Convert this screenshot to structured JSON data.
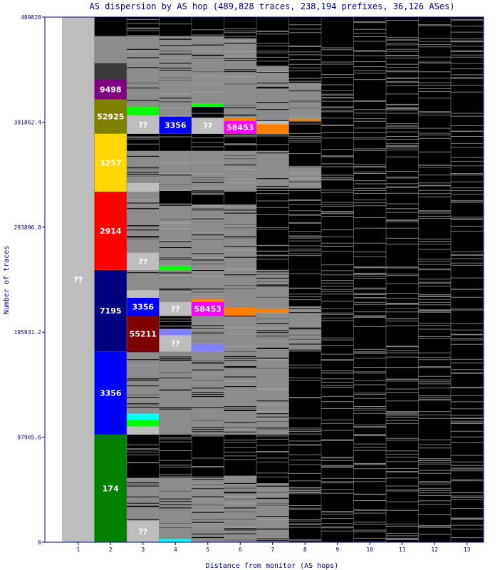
{
  "chart_data": {
    "type": "bar",
    "title": "AS dispersion by AS hop (489,828 traces, 238,194 prefixes, 36,126 ASes)",
    "xlabel": "Distance from monitor (AS hops)",
    "ylabel": "Number of traces",
    "categories": [
      "1",
      "2",
      "3",
      "4",
      "5",
      "6",
      "7",
      "8",
      "9",
      "10",
      "11",
      "12",
      "13"
    ],
    "ylim": [
      0,
      489828
    ],
    "yticks": [
      "0",
      "97965.6",
      "195931.2",
      "293896.8",
      "391862.4",
      "489828"
    ],
    "colors": {
      "frame": "#00007f",
      "unknown": "#bdbdbd",
      "other": "#8c8c8c",
      "none": "#000000"
    },
    "columns": [
      {
        "hop": "1",
        "segments": [
          {
            "label": "??",
            "y0": 0,
            "y1": 489828,
            "color": "#bdbdbd"
          }
        ]
      },
      {
        "hop": "2",
        "segments": [
          {
            "label": "174",
            "y0": 0,
            "y1": 100400,
            "color": "#008000"
          },
          {
            "label": "3356",
            "y0": 100400,
            "y1": 178000,
            "color": "#0000ff"
          },
          {
            "label": "7195",
            "y0": 178000,
            "y1": 254000,
            "color": "#000080"
          },
          {
            "label": "2914",
            "y0": 254000,
            "y1": 327000,
            "color": "#ff0000"
          },
          {
            "label": "3257",
            "y0": 327000,
            "y1": 381000,
            "color": "#ffd700"
          },
          {
            "label": "52925",
            "y0": 381000,
            "y1": 413000,
            "color": "#808000"
          },
          {
            "label": "9498",
            "y0": 413000,
            "y1": 432000,
            "color": "#800080"
          },
          {
            "label": "",
            "y0": 432000,
            "y1": 447000,
            "color": "#3a3a3a"
          },
          {
            "label": "",
            "y0": 447000,
            "y1": 472000,
            "color": "#8c8c8c"
          },
          {
            "label": "",
            "y0": 472000,
            "y1": 489828,
            "color": "#000000"
          }
        ]
      },
      {
        "hop": "3",
        "segments": [
          {
            "label": "??",
            "y0": 0,
            "y1": 20000,
            "color": "#bdbdbd"
          },
          {
            "label": "",
            "y0": 20000,
            "y1": 60000,
            "color": "#8c8c8c"
          },
          {
            "label": "",
            "y0": 60000,
            "y1": 100400,
            "color": "#000000"
          },
          {
            "label": "",
            "y0": 100400,
            "y1": 108000,
            "color": "#bdbdbd"
          },
          {
            "label": "",
            "y0": 108000,
            "y1": 114000,
            "color": "#00ff00"
          },
          {
            "label": "",
            "y0": 114000,
            "y1": 120000,
            "color": "#00ffff"
          },
          {
            "label": "",
            "y0": 120000,
            "y1": 178000,
            "color": "#8c8c8c"
          },
          {
            "label": "55211",
            "y0": 178000,
            "y1": 211000,
            "color": "#800000"
          },
          {
            "label": "3356",
            "y0": 211000,
            "y1": 228000,
            "color": "#0000ff"
          },
          {
            "label": "",
            "y0": 228000,
            "y1": 235000,
            "color": "#bdbdbd"
          },
          {
            "label": "",
            "y0": 235000,
            "y1": 254000,
            "color": "#8c8c8c"
          },
          {
            "label": "??",
            "y0": 254000,
            "y1": 270000,
            "color": "#bdbdbd"
          },
          {
            "label": "",
            "y0": 270000,
            "y1": 315000,
            "color": "#8c8c8c"
          },
          {
            "label": "",
            "y0": 315000,
            "y1": 327000,
            "color": "#8c8c8c"
          },
          {
            "label": "",
            "y0": 327000,
            "y1": 335000,
            "color": "#bdbdbd"
          },
          {
            "label": "",
            "y0": 335000,
            "y1": 365000,
            "color": "#8c8c8c"
          },
          {
            "label": "",
            "y0": 365000,
            "y1": 381000,
            "color": "#000000"
          },
          {
            "label": "??",
            "y0": 381000,
            "y1": 398000,
            "color": "#bdbdbd"
          },
          {
            "label": "",
            "y0": 398000,
            "y1": 406000,
            "color": "#00ff00"
          },
          {
            "label": "",
            "y0": 406000,
            "y1": 447000,
            "color": "#8c8c8c"
          },
          {
            "label": "",
            "y0": 447000,
            "y1": 472000,
            "color": "#8c8c8c"
          },
          {
            "label": "",
            "y0": 472000,
            "y1": 489828,
            "color": "#000000"
          }
        ]
      },
      {
        "hop": "4",
        "segments": [
          {
            "label": "",
            "y0": 0,
            "y1": 3000,
            "color": "#00ffff"
          },
          {
            "label": "",
            "y0": 3000,
            "y1": 60000,
            "color": "#8c8c8c"
          },
          {
            "label": "",
            "y0": 60000,
            "y1": 100400,
            "color": "#000000"
          },
          {
            "label": "",
            "y0": 100400,
            "y1": 178000,
            "color": "#8c8c8c"
          },
          {
            "label": "??",
            "y0": 178000,
            "y1": 193000,
            "color": "#bdbdbd"
          },
          {
            "label": "",
            "y0": 193000,
            "y1": 199000,
            "color": "#8080ff"
          },
          {
            "label": "",
            "y0": 199000,
            "y1": 211000,
            "color": "#000000"
          },
          {
            "label": "??",
            "y0": 211000,
            "y1": 224000,
            "color": "#bdbdbd"
          },
          {
            "label": "",
            "y0": 224000,
            "y1": 254000,
            "color": "#8c8c8c"
          },
          {
            "label": "",
            "y0": 254000,
            "y1": 258000,
            "color": "#00ff00"
          },
          {
            "label": "",
            "y0": 258000,
            "y1": 315000,
            "color": "#8c8c8c"
          },
          {
            "label": "",
            "y0": 315000,
            "y1": 327000,
            "color": "#000000"
          },
          {
            "label": "",
            "y0": 327000,
            "y1": 365000,
            "color": "#8c8c8c"
          },
          {
            "label": "",
            "y0": 365000,
            "y1": 381000,
            "color": "#000000"
          },
          {
            "label": "3356",
            "y0": 381000,
            "y1": 397000,
            "color": "#0000ff"
          },
          {
            "label": "",
            "y0": 397000,
            "y1": 447000,
            "color": "#8c8c8c"
          },
          {
            "label": "",
            "y0": 447000,
            "y1": 472000,
            "color": "#8c8c8c"
          },
          {
            "label": "",
            "y0": 472000,
            "y1": 489828,
            "color": "#000000"
          }
        ]
      },
      {
        "hop": "5",
        "segments": [
          {
            "label": "",
            "y0": 0,
            "y1": 60000,
            "color": "#8c8c8c"
          },
          {
            "label": "",
            "y0": 60000,
            "y1": 100400,
            "color": "#000000"
          },
          {
            "label": "",
            "y0": 100400,
            "y1": 178000,
            "color": "#8c8c8c"
          },
          {
            "label": "",
            "y0": 178000,
            "y1": 185000,
            "color": "#8080ff"
          },
          {
            "label": "",
            "y0": 185000,
            "y1": 211000,
            "color": "#8c8c8c"
          },
          {
            "label": "58453",
            "y0": 211000,
            "y1": 224000,
            "color": "#ff00ff"
          },
          {
            "label": "",
            "y0": 224000,
            "y1": 227000,
            "color": "#ff8000"
          },
          {
            "label": "",
            "y0": 227000,
            "y1": 254000,
            "color": "#8c8c8c"
          },
          {
            "label": "",
            "y0": 254000,
            "y1": 315000,
            "color": "#8c8c8c"
          },
          {
            "label": "",
            "y0": 315000,
            "y1": 327000,
            "color": "#000000"
          },
          {
            "label": "",
            "y0": 327000,
            "y1": 365000,
            "color": "#8c8c8c"
          },
          {
            "label": "",
            "y0": 365000,
            "y1": 381000,
            "color": "#000000"
          },
          {
            "label": "??",
            "y0": 381000,
            "y1": 396000,
            "color": "#bdbdbd"
          },
          {
            "label": "",
            "y0": 396000,
            "y1": 406000,
            "color": "#000000"
          },
          {
            "label": "",
            "y0": 406000,
            "y1": 409000,
            "color": "#00ff00"
          },
          {
            "label": "",
            "y0": 409000,
            "y1": 472000,
            "color": "#8c8c8c"
          },
          {
            "label": "",
            "y0": 472000,
            "y1": 489828,
            "color": "#000000"
          }
        ]
      },
      {
        "hop": "6",
        "segments": [
          {
            "label": "",
            "y0": 0,
            "y1": 62000,
            "color": "#8c8c8c"
          },
          {
            "label": "",
            "y0": 62000,
            "y1": 100400,
            "color": "#000000"
          },
          {
            "label": "",
            "y0": 100400,
            "y1": 178000,
            "color": "#8c8c8c"
          },
          {
            "label": "",
            "y0": 178000,
            "y1": 211000,
            "color": "#8c8c8c"
          },
          {
            "label": "",
            "y0": 211000,
            "y1": 219000,
            "color": "#ff8000"
          },
          {
            "label": "",
            "y0": 219000,
            "y1": 254000,
            "color": "#8c8c8c"
          },
          {
            "label": "",
            "y0": 254000,
            "y1": 315000,
            "color": "#8c8c8c"
          },
          {
            "label": "",
            "y0": 315000,
            "y1": 327000,
            "color": "#000000"
          },
          {
            "label": "",
            "y0": 327000,
            "y1": 365000,
            "color": "#8c8c8c"
          },
          {
            "label": "",
            "y0": 365000,
            "y1": 381000,
            "color": "#000000"
          },
          {
            "label": "58453",
            "y0": 381000,
            "y1": 393000,
            "color": "#ff00ff"
          },
          {
            "label": "",
            "y0": 393000,
            "y1": 396000,
            "color": "#ff8000"
          },
          {
            "label": "",
            "y0": 396000,
            "y1": 470000,
            "color": "#8c8c8c"
          },
          {
            "label": "",
            "y0": 470000,
            "y1": 489828,
            "color": "#000000"
          }
        ]
      },
      {
        "hop": "7",
        "segments": [
          {
            "label": "",
            "y0": 0,
            "y1": 55000,
            "color": "#8c8c8c"
          },
          {
            "label": "",
            "y0": 55000,
            "y1": 100400,
            "color": "#000000"
          },
          {
            "label": "",
            "y0": 100400,
            "y1": 214000,
            "color": "#8c8c8c"
          },
          {
            "label": "",
            "y0": 214000,
            "y1": 218000,
            "color": "#ff8000"
          },
          {
            "label": "",
            "y0": 218000,
            "y1": 254000,
            "color": "#8c8c8c"
          },
          {
            "label": "",
            "y0": 254000,
            "y1": 330000,
            "color": "#000000"
          },
          {
            "label": "",
            "y0": 330000,
            "y1": 365000,
            "color": "#8c8c8c"
          },
          {
            "label": "",
            "y0": 365000,
            "y1": 381000,
            "color": "#000000"
          },
          {
            "label": "",
            "y0": 381000,
            "y1": 390000,
            "color": "#ff8000"
          },
          {
            "label": "",
            "y0": 390000,
            "y1": 393000,
            "color": "#bdbdbd"
          },
          {
            "label": "",
            "y0": 393000,
            "y1": 445000,
            "color": "#8c8c8c"
          },
          {
            "label": "",
            "y0": 445000,
            "y1": 489828,
            "color": "#000000"
          }
        ]
      },
      {
        "hop": "8",
        "segments": [
          {
            "label": "",
            "y0": 0,
            "y1": 100400,
            "color": "#000000"
          },
          {
            "label": "",
            "y0": 100400,
            "y1": 178000,
            "color": "#000000"
          },
          {
            "label": "",
            "y0": 178000,
            "y1": 220000,
            "color": "#8c8c8c"
          },
          {
            "label": "",
            "y0": 220000,
            "y1": 254000,
            "color": "#000000"
          },
          {
            "label": "",
            "y0": 254000,
            "y1": 330000,
            "color": "#000000"
          },
          {
            "label": "",
            "y0": 330000,
            "y1": 350000,
            "color": "#8c8c8c"
          },
          {
            "label": "",
            "y0": 350000,
            "y1": 381000,
            "color": "#000000"
          },
          {
            "label": "",
            "y0": 381000,
            "y1": 393000,
            "color": "#000000"
          },
          {
            "label": "",
            "y0": 393000,
            "y1": 395000,
            "color": "#ff8000"
          },
          {
            "label": "",
            "y0": 395000,
            "y1": 430000,
            "color": "#8c8c8c"
          },
          {
            "label": "",
            "y0": 430000,
            "y1": 489828,
            "color": "#000000"
          }
        ]
      },
      {
        "hop": "9",
        "segments": [
          {
            "label": "",
            "y0": 0,
            "y1": 489828,
            "color": "#000000"
          }
        ]
      },
      {
        "hop": "10",
        "segments": [
          {
            "label": "",
            "y0": 0,
            "y1": 489828,
            "color": "#000000"
          }
        ]
      },
      {
        "hop": "11",
        "segments": [
          {
            "label": "",
            "y0": 0,
            "y1": 489828,
            "color": "#000000"
          }
        ]
      },
      {
        "hop": "12",
        "segments": [
          {
            "label": "",
            "y0": 0,
            "y1": 489828,
            "color": "#000000"
          }
        ]
      },
      {
        "hop": "13",
        "segments": [
          {
            "label": "",
            "y0": 0,
            "y1": 489828,
            "color": "#000000"
          }
        ]
      }
    ]
  }
}
